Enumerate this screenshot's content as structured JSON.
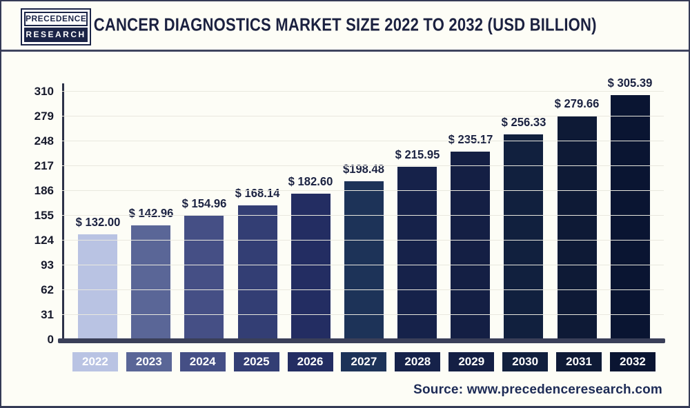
{
  "header": {
    "logo_line1": "PRECEDENCE",
    "logo_line2": "RESEARCH",
    "title": "CANCER DIAGNOSTICS MARKET SIZE 2022 TO 2032 (USD BILLION)"
  },
  "source": {
    "label": "Source: www.precedenceresearch.com"
  },
  "colors": {
    "background": "#fdfdf6",
    "frame_border": "#343a55",
    "title_text": "#1b2140",
    "axis_line": "#2c3148",
    "gridline": "#e9e8df",
    "baseline_bar": "#3a3f58",
    "value_label_text": "#1c2342",
    "source_text": "#1d2b56"
  },
  "chart_data": {
    "type": "bar",
    "title": "Cancer Diagnostics Market Size 2022 to 2032 (USD Billion)",
    "xlabel": "",
    "ylabel": "",
    "categories": [
      "2022",
      "2023",
      "2024",
      "2025",
      "2026",
      "2027",
      "2028",
      "2029",
      "2030",
      "2031",
      "2032"
    ],
    "values": [
      132.0,
      142.96,
      154.96,
      168.14,
      182.6,
      198.48,
      215.95,
      235.17,
      256.33,
      279.66,
      305.39
    ],
    "value_labels": [
      "$ 132.00",
      "$ 142.96",
      "$ 154.96",
      "$ 168.14",
      "$ 182.60",
      "$198.48",
      "$ 215.95",
      "$ 235.17",
      "$ 256.33",
      "$ 279.66",
      "$ 305.39"
    ],
    "bar_colors": [
      "#b9c3e3",
      "#5a6697",
      "#454f85",
      "#333e74",
      "#232d62",
      "#1d3358",
      "#16224a",
      "#141f44",
      "#11203e",
      "#0e1a36",
      "#0a1532"
    ],
    "yticks": [
      0,
      31,
      62,
      93,
      124,
      155,
      186,
      217,
      248,
      279,
      310
    ],
    "ylim": [
      0,
      310
    ],
    "grid": "horizontal",
    "legend": "none"
  }
}
